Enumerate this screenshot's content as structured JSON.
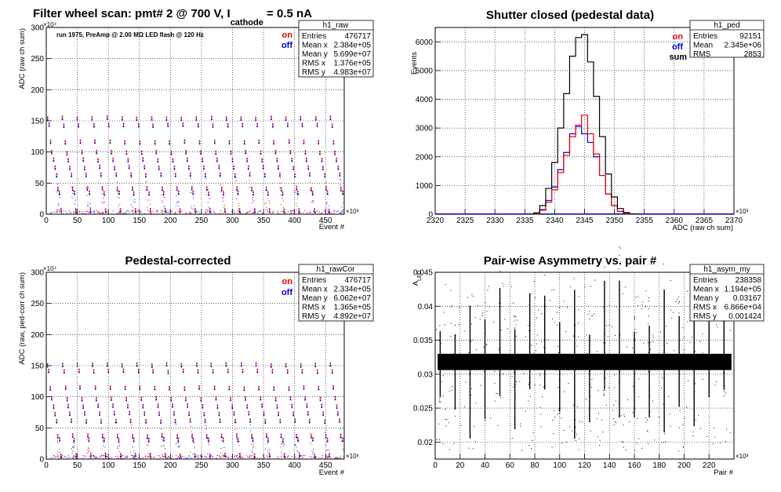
{
  "panels": [
    {
      "stats_name": "h1_raw",
      "title_parts": [
        "Filter wheel scan: pmt#   2 @   700 V, I",
        "cathode",
        " = 0.5 nA"
      ],
      "subtitle": "run 1975, PreAmp @ 2.00 MΩ   LED flash @  120 Hz",
      "xlabel": "Event #",
      "ylabel": "ADC (raw ch sum)",
      "x_multiplier": "×10³",
      "y_multiplier": "×10⁴",
      "legend": [
        {
          "label": "on",
          "color": "#ee0000"
        },
        {
          "label": "off",
          "color": "#0000dd"
        }
      ],
      "stats": [
        {
          "k": "Entries",
          "v": "476717"
        },
        {
          "k": "Mean x",
          "v": "2.384e+05"
        },
        {
          "k": "Mean y",
          "v": "5.699e+07"
        },
        {
          "k": "RMS x",
          "v": "1.376e+05"
        },
        {
          "k": "RMS y",
          "v": "4.983e+07"
        }
      ]
    },
    {
      "stats_name": "h1_ped",
      "title": "Shutter closed (pedestal data)",
      "xlabel": "ADC (raw ch sum)",
      "ylabel": "Events",
      "x_multiplier": "×10³",
      "legend": [
        {
          "label": "on",
          "color": "#ee0000"
        },
        {
          "label": "off",
          "color": "#0000dd"
        },
        {
          "label": "sum",
          "color": "#000000"
        }
      ],
      "stats": [
        {
          "k": "Entries",
          "v": "92151"
        },
        {
          "k": "Mean",
          "v": "2.345e+06"
        },
        {
          "k": "RMS",
          "v": "2853"
        }
      ]
    },
    {
      "stats_name": "h1_rawCor",
      "title": "Pedestal-corrected",
      "xlabel": "Event #",
      "ylabel": "ADC (raw, ped-corr ch sum)",
      "x_multiplier": "×10³",
      "y_multiplier": "×10⁴",
      "legend": [
        {
          "label": "on",
          "color": "#ee0000"
        },
        {
          "label": "off",
          "color": "#0000dd"
        }
      ],
      "stats": [
        {
          "k": "Entries",
          "v": "476717"
        },
        {
          "k": "Mean x",
          "v": "2.334e+05"
        },
        {
          "k": "Mean y",
          "v": "6.062e+07"
        },
        {
          "k": "RMS x",
          "v": "1.365e+05"
        },
        {
          "k": "RMS y",
          "v": "4.892e+07"
        }
      ]
    },
    {
      "stats_name": "h1_asym_my",
      "title": "Pair-wise Asymmetry vs. pair #",
      "xlabel": "Pair #",
      "ylabel_main": "A",
      "ylabel_sub": "LED",
      "x_multiplier": "×10³",
      "stats": [
        {
          "k": "Entries",
          "v": "238358"
        },
        {
          "k": "Mean x",
          "v": "1.194e+05"
        },
        {
          "k": "Mean y",
          "v": "0.03167"
        },
        {
          "k": "RMS x",
          "v": "6.866e+04"
        },
        {
          "k": "RMS y",
          "v": "0.001424"
        }
      ]
    }
  ],
  "chart_data": [
    {
      "type": "scatter",
      "title": "Filter wheel scan: pmt#   2 @   700 V, I cathode = 0.5 nA",
      "xlabel": "Event # (×10³)",
      "ylabel": "ADC (raw ch sum) (×10⁴)",
      "xlim": [
        0,
        480
      ],
      "ylim": [
        0,
        300
      ],
      "x_ticks": [
        0,
        50,
        100,
        150,
        200,
        250,
        300,
        350,
        400,
        450
      ],
      "y_ticks": [
        0,
        50,
        100,
        150,
        200,
        250,
        300
      ],
      "grid": true,
      "cycle_length": 24,
      "levels": [
        153,
        142,
        115,
        98,
        86,
        74,
        62,
        40,
        33,
        5
      ],
      "series": [
        {
          "name": "on",
          "color": "#ee0000"
        },
        {
          "name": "off",
          "color": "#0000dd"
        }
      ]
    },
    {
      "type": "line",
      "title": "Shutter closed (pedestal data)",
      "xlabel": "ADC (raw ch sum) (×10³)",
      "ylabel": "Events",
      "xlim": [
        2320,
        2370
      ],
      "ylim": [
        0,
        6500
      ],
      "x_ticks": [
        2320,
        2325,
        2330,
        2335,
        2340,
        2345,
        2350,
        2355,
        2360,
        2365,
        2370
      ],
      "y_ticks": [
        0,
        1000,
        2000,
        3000,
        4000,
        5000,
        6000
      ],
      "grid": true,
      "x": [
        2337,
        2338,
        2339,
        2340,
        2341,
        2342,
        2343,
        2344,
        2345,
        2346,
        2347,
        2348,
        2349,
        2350,
        2351,
        2352,
        2353
      ],
      "series": [
        {
          "name": "sum",
          "color": "#000000",
          "values": [
            50,
            300,
            900,
            1800,
            3000,
            4200,
            5500,
            6150,
            6250,
            5300,
            4100,
            2700,
            1400,
            600,
            200,
            60,
            10
          ]
        },
        {
          "name": "on",
          "color": "#ee0000",
          "values": [
            20,
            140,
            420,
            850,
            1450,
            2050,
            2700,
            3100,
            3450,
            2800,
            2100,
            1350,
            700,
            300,
            100,
            30,
            5
          ]
        },
        {
          "name": "off",
          "color": "#0000dd",
          "values": [
            30,
            160,
            480,
            950,
            1550,
            2150,
            2800,
            3050,
            2800,
            2500,
            2000,
            1350,
            700,
            300,
            100,
            30,
            5
          ]
        }
      ]
    },
    {
      "type": "scatter",
      "title": "Pedestal-corrected",
      "xlabel": "Event # (×10³)",
      "ylabel": "ADC (raw, ped-corr ch sum) (×10⁴)",
      "xlim": [
        0,
        480
      ],
      "ylim": [
        0,
        300
      ],
      "x_ticks": [
        0,
        50,
        100,
        150,
        200,
        250,
        300,
        350,
        400,
        450
      ],
      "y_ticks": [
        0,
        50,
        100,
        150,
        200,
        250,
        300
      ],
      "grid": true,
      "cycle_length": 24,
      "levels": [
        150,
        140,
        113,
        96,
        84,
        72,
        60,
        36,
        30,
        5
      ],
      "series": [
        {
          "name": "on",
          "color": "#ee0000"
        },
        {
          "name": "off",
          "color": "#0000dd"
        }
      ]
    },
    {
      "type": "scatter",
      "title": "Pair-wise Asymmetry vs. pair #",
      "xlabel": "Pair # (×10³)",
      "ylabel": "A LED",
      "xlim": [
        0,
        240
      ],
      "ylim": [
        0.0175,
        0.045
      ],
      "x_ticks": [
        0,
        20,
        40,
        60,
        80,
        100,
        120,
        140,
        160,
        180,
        200,
        220
      ],
      "y_ticks": [
        0.02,
        0.025,
        0.03,
        0.035,
        0.04,
        0.045
      ],
      "grid": true,
      "band_center": 0.0318,
      "band_halfwidth": 0.0012,
      "spike_period": 12,
      "series": [
        {
          "name": "asym",
          "color": "#000000"
        }
      ]
    }
  ]
}
